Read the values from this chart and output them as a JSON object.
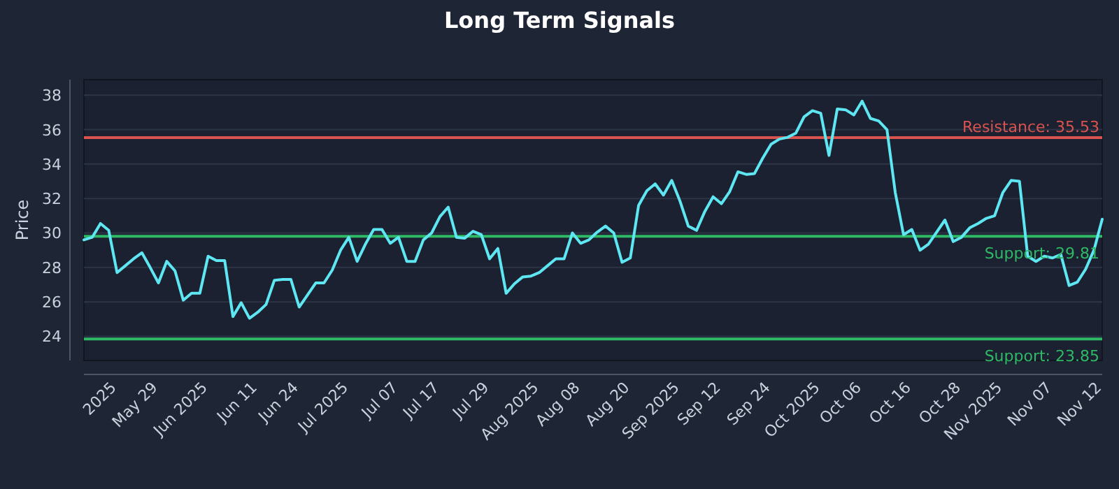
{
  "chart_data": {
    "type": "line",
    "title": "Long Term Signals",
    "ylabel": "Price",
    "categories": [
      null,
      null,
      null,
      null,
      "2025",
      null,
      null,
      null,
      null,
      "May 29",
      null,
      null,
      null,
      null,
      null,
      "Jun 2025",
      null,
      null,
      null,
      null,
      null,
      "Jun 11",
      null,
      null,
      null,
      null,
      "Jun 24",
      null,
      null,
      null,
      null,
      null,
      "Jul 2025",
      null,
      null,
      null,
      null,
      null,
      "Jul 07",
      null,
      null,
      null,
      null,
      "Jul 17",
      null,
      null,
      null,
      null,
      null,
      "Jul 29",
      null,
      null,
      null,
      null,
      null,
      "Aug 2025",
      null,
      null,
      null,
      null,
      "Aug 08",
      null,
      null,
      null,
      null,
      null,
      "Aug 20",
      null,
      null,
      null,
      null,
      null,
      "Sep 2025",
      null,
      null,
      null,
      null,
      "Sep 12",
      null,
      null,
      null,
      null,
      null,
      "Sep 24",
      null,
      null,
      null,
      null,
      null,
      "Oct 2025",
      null,
      null,
      null,
      null,
      "Oct 06",
      null,
      null,
      null,
      null,
      null,
      "Oct 16",
      null,
      null,
      null,
      null,
      null,
      "Oct 28",
      null,
      null,
      null,
      null,
      "Nov 2025",
      null,
      null,
      null,
      null,
      null,
      "Nov 07",
      null,
      null,
      null,
      null,
      null,
      "Nov 12"
    ],
    "series": [
      {
        "color": "#5ee6f2",
        "values": [
          29.6,
          29.75,
          30.55,
          30.15,
          27.7,
          28.1,
          28.5,
          28.85,
          28.0,
          27.1,
          28.35,
          27.8,
          26.1,
          26.5,
          26.5,
          28.65,
          28.4,
          28.4,
          25.15,
          25.95,
          25.05,
          25.4,
          25.85,
          27.25,
          27.3,
          27.3,
          25.7,
          26.4,
          27.1,
          27.1,
          27.85,
          29.0,
          29.75,
          28.35,
          29.35,
          30.2,
          30.2,
          29.4,
          29.75,
          28.35,
          28.35,
          29.6,
          30.0,
          30.95,
          31.5,
          29.75,
          29.7,
          30.1,
          29.9,
          28.5,
          29.1,
          26.5,
          27.05,
          27.45,
          27.5,
          27.7,
          28.1,
          28.5,
          28.5,
          30.0,
          29.4,
          29.6,
          30.05,
          30.4,
          30.0,
          28.3,
          28.55,
          31.6,
          32.45,
          32.85,
          32.2,
          33.05,
          31.85,
          30.4,
          30.15,
          31.25,
          32.1,
          31.7,
          32.4,
          33.55,
          33.4,
          33.45,
          34.35,
          35.15,
          35.45,
          35.55,
          35.8,
          36.75,
          37.1,
          36.95,
          34.5,
          37.2,
          37.15,
          36.85,
          37.65,
          36.65,
          36.5,
          36.0,
          32.35,
          29.9,
          30.2,
          29.0,
          29.35,
          30.05,
          30.75,
          29.5,
          29.75,
          30.3,
          30.55,
          30.85,
          31.0,
          32.35,
          33.05,
          33.0,
          28.65,
          28.35,
          28.65,
          28.55,
          28.75,
          26.95,
          27.15,
          27.9,
          29.0,
          30.8
        ]
      }
    ],
    "ylim": [
      22.6,
      38.9
    ],
    "yticks": [
      24,
      26,
      28,
      30,
      32,
      34,
      36,
      38
    ],
    "grid": "y",
    "ref_lines": [
      {
        "axis": "y",
        "value": 35.53,
        "label": "Resistance: 35.53",
        "color": "#d9534f"
      },
      {
        "axis": "y",
        "value": 29.81,
        "label": "Support: 29.81",
        "color": "#2fb865"
      },
      {
        "axis": "y",
        "value": 23.85,
        "label": "Support: 23.85",
        "color": "#2fb865"
      }
    ]
  }
}
